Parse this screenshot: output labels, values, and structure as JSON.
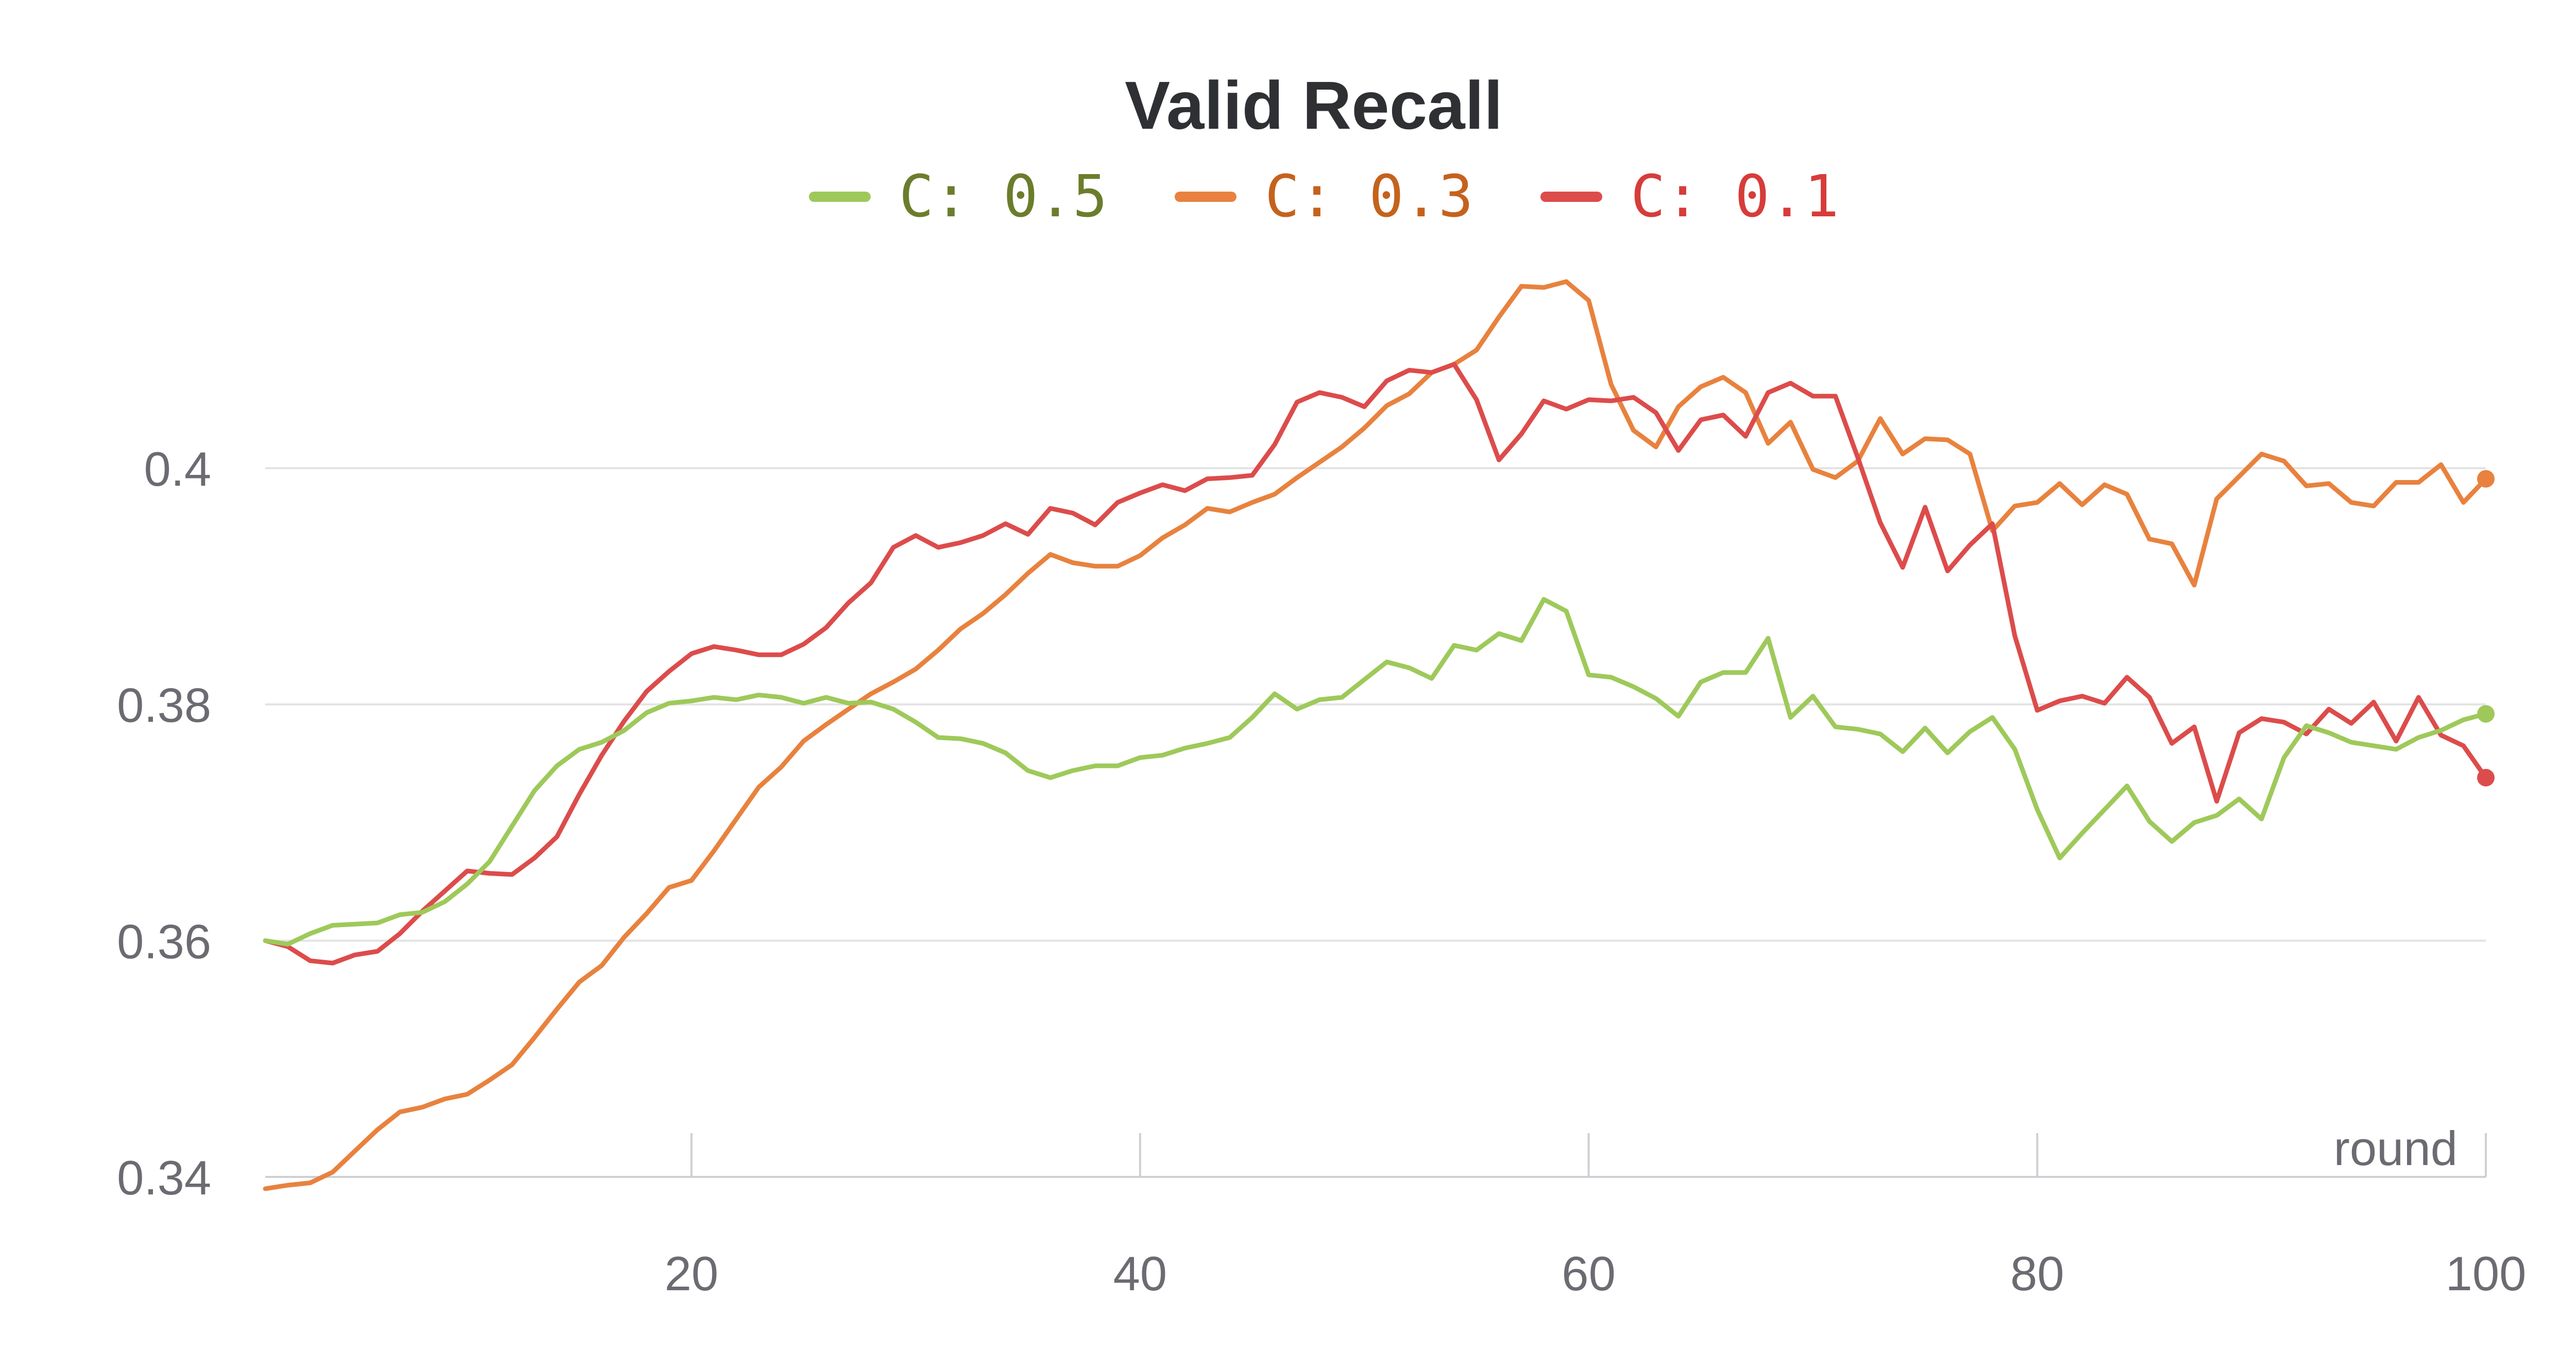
{
  "chart_data": {
    "type": "line",
    "title": "Valid Recall",
    "xlabel": "round",
    "ylabel": "",
    "xlim": [
      1,
      100
    ],
    "ylim": [
      0.34,
      0.415
    ],
    "x_ticks": [
      20,
      40,
      60,
      80,
      100
    ],
    "y_ticks": [
      0.34,
      0.36,
      0.38,
      0.4
    ],
    "x_tick_labels": [
      "20",
      "40",
      "60",
      "80",
      "100"
    ],
    "y_tick_labels": [
      "0.34",
      "0.36",
      "0.38",
      "0.4"
    ],
    "grid": true,
    "legend_position": "top-center",
    "series": [
      {
        "name": "C: 0.5",
        "color": "#9ec95a",
        "label_color": "#6b7d2c",
        "values": [
          0.36,
          0.3597,
          0.3606,
          0.3613,
          0.3614,
          0.3615,
          0.3622,
          0.3624,
          0.3633,
          0.3648,
          0.3667,
          0.3697,
          0.3727,
          0.3748,
          0.3762,
          0.3768,
          0.3778,
          0.3793,
          0.3801,
          0.3803,
          0.3806,
          0.3804,
          0.3808,
          0.3806,
          0.3801,
          0.3806,
          0.3801,
          0.3802,
          0.3796,
          0.3785,
          0.3772,
          0.3771,
          0.3767,
          0.3759,
          0.3744,
          0.3738,
          0.3744,
          0.3748,
          0.3748,
          0.3755,
          0.3757,
          0.3763,
          0.3767,
          0.3772,
          0.3789,
          0.3809,
          0.3796,
          0.3804,
          0.3806,
          0.3821,
          0.3836,
          0.3831,
          0.3822,
          0.385,
          0.3846,
          0.386,
          0.3854,
          0.3889,
          0.3879,
          0.3825,
          0.3823,
          0.3815,
          0.3805,
          0.379,
          0.3819,
          0.3827,
          0.3827,
          0.3856,
          0.3789,
          0.3807,
          0.3781,
          0.3779,
          0.3775,
          0.376,
          0.378,
          0.3759,
          0.3777,
          0.3789,
          0.3762,
          0.3711,
          0.367,
          0.3691,
          0.3711,
          0.3731,
          0.3701,
          0.3684,
          0.37,
          0.3706,
          0.372,
          0.3703,
          0.3755,
          0.3782,
          0.3776,
          0.3768,
          0.3765,
          0.3762,
          0.3772,
          0.3778,
          0.3787,
          0.3792
        ]
      },
      {
        "name": "C: 0.3",
        "color": "#e8823e",
        "label_color": "#c4621d",
        "values": [
          0.339,
          0.3393,
          0.3395,
          0.3404,
          0.3422,
          0.344,
          0.3455,
          0.3459,
          0.3466,
          0.347,
          0.3482,
          0.3495,
          0.3518,
          0.3542,
          0.3565,
          0.3579,
          0.3603,
          0.3623,
          0.3645,
          0.3651,
          0.3676,
          0.3703,
          0.373,
          0.3747,
          0.3769,
          0.3783,
          0.3796,
          0.3809,
          0.3819,
          0.383,
          0.3846,
          0.3864,
          0.3877,
          0.3893,
          0.3911,
          0.3927,
          0.392,
          0.3917,
          0.3917,
          0.3926,
          0.3941,
          0.3952,
          0.3966,
          0.3963,
          0.3971,
          0.3978,
          0.3992,
          0.4005,
          0.4018,
          0.4034,
          0.4053,
          0.4063,
          0.4081,
          0.4088,
          0.41,
          0.4128,
          0.4154,
          0.4153,
          0.4158,
          0.4142,
          0.4071,
          0.4032,
          0.4018,
          0.4052,
          0.4069,
          0.4077,
          0.4064,
          0.4021,
          0.4039,
          0.3999,
          0.3992,
          0.4006,
          0.4042,
          0.4012,
          0.4025,
          0.4024,
          0.4012,
          0.3947,
          0.3968,
          0.3971,
          0.3987,
          0.3969,
          0.3986,
          0.3978,
          0.394,
          0.3936,
          0.3901,
          0.3974,
          0.3993,
          0.4012,
          0.4006,
          0.3985,
          0.3987,
          0.3971,
          0.3968,
          0.3988,
          0.3988,
          0.4003,
          0.3971,
          0.3991
        ]
      },
      {
        "name": "C: 0.1",
        "color": "#dc4c4b",
        "label_color": "#d63c3a",
        "values": [
          0.36,
          0.3595,
          0.3583,
          0.3581,
          0.3588,
          0.3591,
          0.3606,
          0.3625,
          0.3642,
          0.3659,
          0.3657,
          0.3656,
          0.367,
          0.3688,
          0.3724,
          0.3757,
          0.3786,
          0.3811,
          0.3828,
          0.3843,
          0.3849,
          0.3846,
          0.3842,
          0.3842,
          0.3851,
          0.3865,
          0.3886,
          0.3903,
          0.3933,
          0.3943,
          0.3933,
          0.3937,
          0.3943,
          0.3953,
          0.3944,
          0.3966,
          0.3962,
          0.3952,
          0.3971,
          0.3979,
          0.3986,
          0.3981,
          0.3991,
          0.3992,
          0.3994,
          0.402,
          0.4056,
          0.4064,
          0.406,
          0.4052,
          0.4074,
          0.4083,
          0.4081,
          0.4088,
          0.4058,
          0.4007,
          0.4029,
          0.4057,
          0.405,
          0.4058,
          0.4057,
          0.406,
          0.4047,
          0.4015,
          0.4041,
          0.4045,
          0.4027,
          0.4064,
          0.4072,
          0.4061,
          0.4061,
          0.4009,
          0.3954,
          0.3916,
          0.3967,
          0.3913,
          0.3935,
          0.3953,
          0.3858,
          0.3795,
          0.3803,
          0.3807,
          0.3801,
          0.3823,
          0.3806,
          0.3767,
          0.3781,
          0.3718,
          0.3776,
          0.3788,
          0.3785,
          0.3775,
          0.3796,
          0.3784,
          0.3802,
          0.3769,
          0.3806,
          0.3774,
          0.3765,
          0.3738
        ]
      }
    ]
  }
}
